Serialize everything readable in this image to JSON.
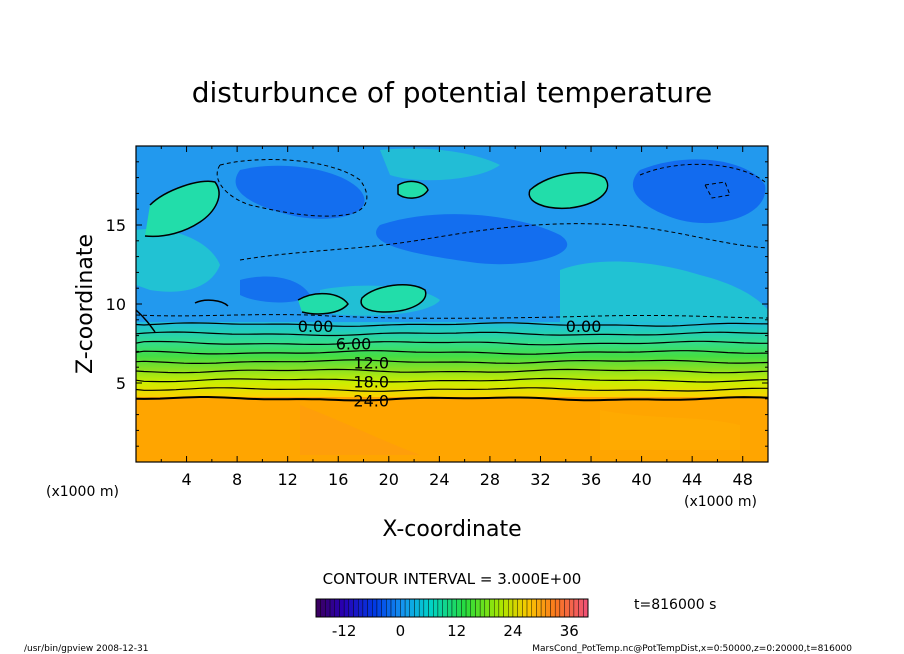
{
  "chart_data": {
    "type": "heatmap",
    "title": "disturbunce of potential temperature",
    "xlabel": "X-coordinate",
    "ylabel": "Z-coordinate",
    "x_unit": "(x1000 m)",
    "y_unit": "(x1000 m)",
    "x_ticks": [
      "4",
      "8",
      "12",
      "16",
      "20",
      "24",
      "28",
      "32",
      "36",
      "40",
      "44",
      "48"
    ],
    "y_ticks": [
      "5",
      "10",
      "15"
    ],
    "xlim": [
      0,
      50
    ],
    "ylim": [
      0,
      20
    ],
    "contour_interval_text": "CONTOUR INTERVAL = 3.000E+00",
    "contour_labels": [
      {
        "text": "0.00",
        "x": 12.8,
        "z": 8.6
      },
      {
        "text": "0.00",
        "x": 34.0,
        "z": 8.6
      },
      {
        "text": "6.00",
        "x": 15.8,
        "z": 7.5
      },
      {
        "text": "12.0",
        "x": 17.2,
        "z": 6.3
      },
      {
        "text": "18.0",
        "x": 17.2,
        "z": 5.1
      },
      {
        "text": "24.0",
        "x": 17.2,
        "z": 3.9
      }
    ],
    "colorbar": {
      "range": [
        -18,
        40
      ],
      "ticks": [
        "-12",
        "0",
        "12",
        "24",
        "36"
      ],
      "tick_values": [
        -12,
        0,
        12,
        24,
        36
      ]
    },
    "time_label": "t=816000 s",
    "footer_left": "/usr/bin/gpview   2008-12-31",
    "footer_right": "MarsCond_PotTemp.nc@PotTempDist,x=0:50000,z=0:20000,t=816000",
    "structure": {
      "lower_layer_value": 24,
      "lower_layer_top_z": 4.0,
      "gradient_layer_z": [
        4.0,
        8.7
      ],
      "upper_layer_value_range": [
        -6,
        3
      ]
    }
  },
  "colors": {
    "orange": "#ffa500",
    "green": "#33dd33",
    "yellow": "#ccee00",
    "cyan": "#22cccc",
    "light_blue": "#2299ee",
    "blue": "#1166ee",
    "teal": "#22ddaa"
  }
}
